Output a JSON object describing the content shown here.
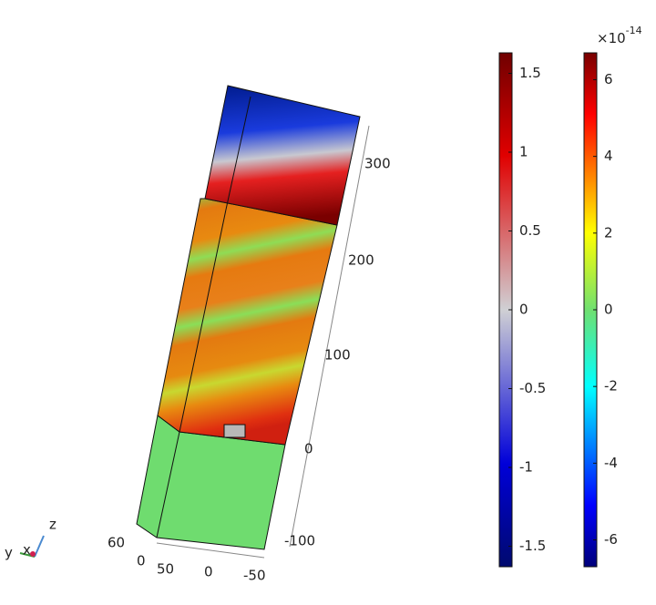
{
  "chart_data": [
    {
      "type": "colorbar",
      "lim": [
        -1.63,
        1.63
      ],
      "ticks": [
        1.5,
        1,
        0.5,
        0,
        -0.5,
        -1,
        -1.5
      ],
      "colormap": "wave"
    },
    {
      "type": "colorbar",
      "lim": [
        -6.7,
        6.7
      ],
      "ticks": [
        6,
        4,
        2,
        0,
        -2,
        -4,
        -6
      ],
      "colormap": "rainbow",
      "multiplier": {
        "base": "×10",
        "exponent": "-14"
      }
    }
  ],
  "axes_3d": {
    "z_ticks": [
      300,
      200,
      100,
      0,
      -100
    ],
    "y_ticks": [
      60,
      0
    ],
    "x_ticks": [
      50,
      0,
      -50
    ]
  },
  "triad": {
    "z": "z",
    "y": "y",
    "x": "x"
  }
}
